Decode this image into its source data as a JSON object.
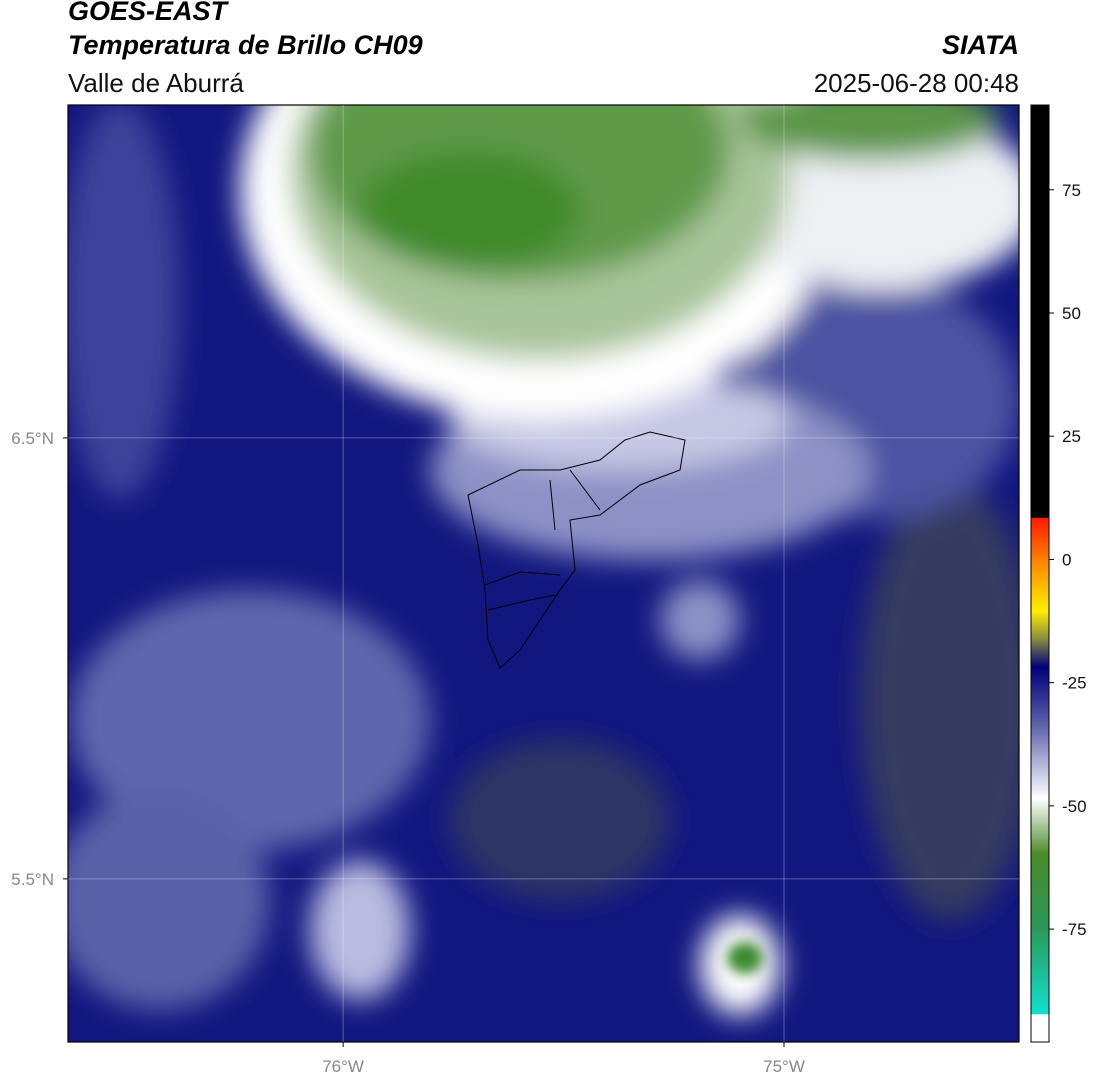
{
  "header": {
    "title": "GOES-EAST",
    "subtitle": "Temperatura de Brillo CH09",
    "region": "Valle de Aburrá",
    "source": "SIATA",
    "datetime": "2025-06-28 00:48"
  },
  "map": {
    "xlim": [
      -76.624,
      -74.467
    ],
    "ylim": [
      5.13,
      7.255
    ],
    "xticks": [
      {
        "value": -76,
        "label": "76°W"
      },
      {
        "value": -75,
        "label": "75°W"
      }
    ],
    "yticks": [
      {
        "value": 6.5,
        "label": "6.5°N"
      },
      {
        "value": 5.5,
        "label": "5.5°N"
      }
    ]
  },
  "colorbar": {
    "lim": [
      -97.9,
      92.2
    ],
    "ticks": [
      75,
      50,
      25,
      0,
      -25,
      -50,
      -75
    ]
  }
}
